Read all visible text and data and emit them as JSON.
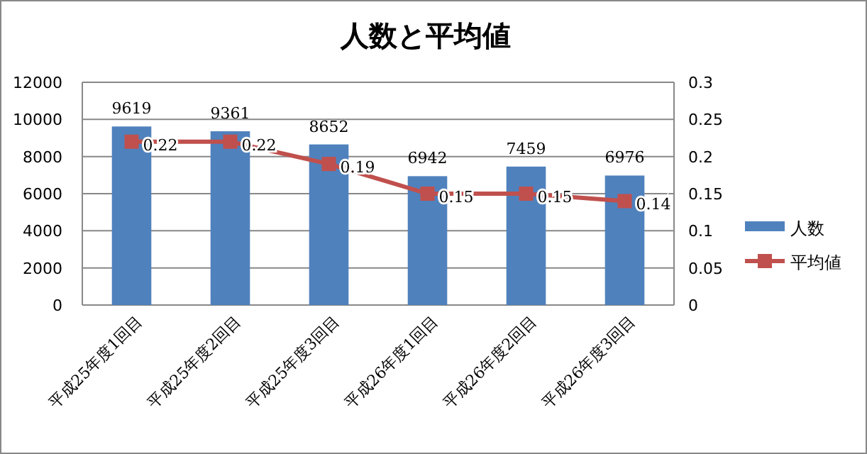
{
  "chart_data": {
    "type": "bar",
    "title": "人数と平均値",
    "categories": [
      "平成25年度1回目",
      "平成25年度2回目",
      "平成25年度3回目",
      "平成26年度1回目",
      "平成26年度2回目",
      "平成26年度3回目"
    ],
    "series": [
      {
        "name": "人数",
        "color": "#4f81bd",
        "values": [
          9619,
          9361,
          8652,
          6942,
          7459,
          6976
        ]
      },
      {
        "name": "平均値",
        "type": "line",
        "axis": "y2",
        "marker": "square",
        "color": "#c0504d",
        "values": [
          0.22,
          0.22,
          0.19,
          0.15,
          0.15,
          0.14
        ]
      }
    ],
    "ylim": [
      0,
      12000
    ],
    "yticks": [
      0,
      2000,
      4000,
      6000,
      8000,
      10000,
      12000
    ],
    "y2lim": [
      0,
      0.3
    ],
    "y2ticks": [
      0,
      0.05,
      0.1,
      0.15,
      0.2,
      0.25,
      0.3
    ],
    "grid": "y",
    "legend": "right",
    "data_labels": true
  }
}
